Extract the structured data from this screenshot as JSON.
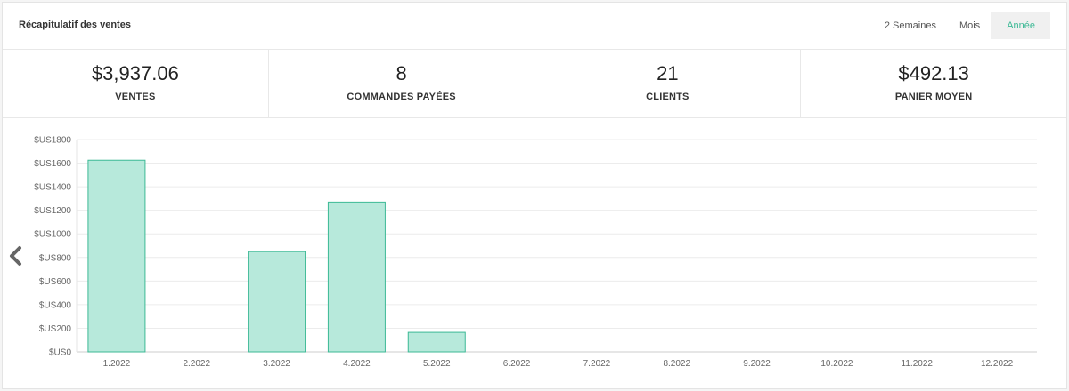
{
  "header": {
    "title": "Récapitulatif des ventes",
    "tabs": [
      {
        "label": "2 Semaines",
        "active": false
      },
      {
        "label": "Mois",
        "active": false
      },
      {
        "label": "Année",
        "active": true
      }
    ]
  },
  "stats": [
    {
      "value": "$3,937.06",
      "label": "VENTES"
    },
    {
      "value": "8",
      "label": "COMMANDES PAYÉES"
    },
    {
      "value": "21",
      "label": "CLIENTS"
    },
    {
      "value": "$492.13",
      "label": "PANIER MOYEN"
    }
  ],
  "colors": {
    "bar_fill": "#b7e9db",
    "bar_stroke": "#3cb995",
    "accent": "#3cb995"
  },
  "icons": {
    "nav_left": "chevron-left-icon"
  },
  "chart_data": {
    "type": "bar",
    "categories": [
      "1.2022",
      "2.2022",
      "3.2022",
      "4.2022",
      "5.2022",
      "6.2022",
      "7.2022",
      "8.2022",
      "9.2022",
      "10.2022",
      "11.2022",
      "12.2022"
    ],
    "values": [
      1625,
      0,
      850,
      1270,
      165,
      0,
      0,
      0,
      0,
      0,
      0,
      0
    ],
    "ylim": [
      0,
      1800
    ],
    "yticks": [
      0,
      200,
      400,
      600,
      800,
      1000,
      1200,
      1400,
      1600,
      1800
    ],
    "ytick_labels": [
      "$US0",
      "$US200",
      "$US400",
      "$US600",
      "$US800",
      "$US1000",
      "$US1200",
      "$US1400",
      "$US1600",
      "$US1800"
    ],
    "title": "",
    "xlabel": "",
    "ylabel": "",
    "grid": true,
    "legend": "none"
  }
}
